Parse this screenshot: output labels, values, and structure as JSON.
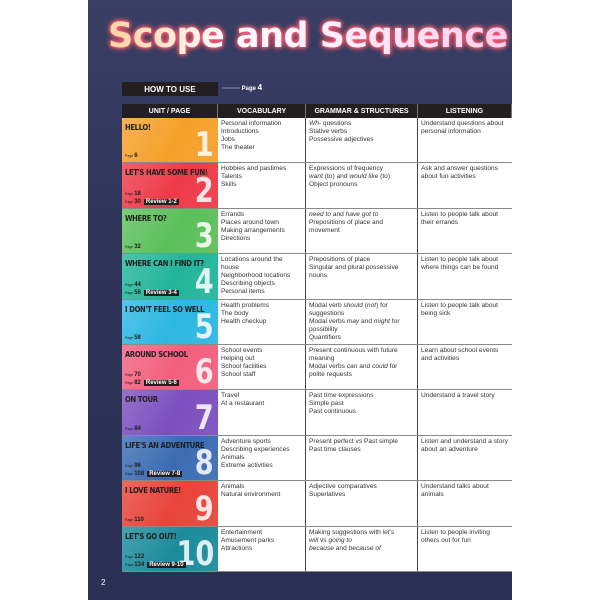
{
  "title": "Scope and Sequence",
  "how_to_use": {
    "label": "HOW TO USE",
    "dots": "·········",
    "page_label": "Page",
    "page": "4"
  },
  "headers": [
    "UNIT / PAGE",
    "VOCABULARY",
    "GRAMMAR & STRUCTURES",
    "LISTENING"
  ],
  "page_label": "Page",
  "units": [
    {
      "name": "HELLO!",
      "number": "1",
      "color": "#f6a02a",
      "pages": [
        "6"
      ],
      "review": "",
      "vocabulary": [
        "Personal information",
        "Introductions",
        "Jobs",
        "The theater"
      ],
      "grammar": [
        [
          [
            "Wh-",
            true
          ],
          [
            " questions",
            false
          ]
        ],
        [
          [
            "Stative verbs",
            false
          ]
        ],
        [
          [
            "Possessive adjectives",
            false
          ]
        ]
      ],
      "listening": "Understand questions about personal information"
    },
    {
      "name": "LET'S HAVE SOME FUN!",
      "number": "2",
      "color": "#ee3a48",
      "pages": [
        "18",
        "30"
      ],
      "review": "Review 1-2",
      "vocabulary": [
        "Hobbies and pastimes",
        "Talents",
        "Skills"
      ],
      "grammar": [
        [
          [
            "Expressions of frequency",
            false
          ]
        ],
        [
          [
            "want",
            true
          ],
          [
            " (to) and ",
            false
          ],
          [
            "would like",
            true
          ],
          [
            " (to)",
            false
          ]
        ],
        [
          [
            "Object pronouns",
            false
          ]
        ]
      ],
      "listening": "Ask and answer questions about fun activities"
    },
    {
      "name": "WHERE TO?",
      "number": "3",
      "color": "#5cbf5a",
      "pages": [
        "32"
      ],
      "review": "",
      "vocabulary": [
        "Errands",
        "Places around town",
        "Making arrangements",
        "Directions"
      ],
      "grammar": [
        [
          [
            "need to",
            true
          ],
          [
            " and ",
            false
          ],
          [
            "have got to",
            true
          ]
        ],
        [
          [
            "Prepositions of place and movement",
            false
          ]
        ]
      ],
      "listening": "Listen to people talk about their errands"
    },
    {
      "name": "WHERE CAN I FIND IT?",
      "number": "4",
      "color": "#22b59a",
      "pages": [
        "44",
        "56"
      ],
      "review": "Review 3-4",
      "vocabulary": [
        "Locations around the house",
        "Neighborhood locations",
        "Describing objects",
        "Personal items"
      ],
      "grammar": [
        [
          [
            "Prepositions of place",
            false
          ]
        ],
        [
          [
            "Singular and plural possessive nouns",
            false
          ]
        ]
      ],
      "listening": "Listen to people talk about where things can be found"
    },
    {
      "name": "I DON'T FEEL SO WELL",
      "number": "5",
      "color": "#2cb7e2",
      "pages": [
        "58"
      ],
      "review": "",
      "vocabulary": [
        "Health problems",
        "The body",
        "Health checkup"
      ],
      "grammar": [
        [
          [
            "Modal verb ",
            false
          ],
          [
            "should",
            true
          ],
          [
            " (",
            false
          ],
          [
            "not",
            true
          ],
          [
            ") for suggestions",
            false
          ]
        ],
        [
          [
            "Modal verbs ",
            false
          ],
          [
            "may",
            true
          ],
          [
            " and ",
            false
          ],
          [
            "might",
            true
          ],
          [
            " for possibility",
            false
          ]
        ],
        [
          [
            "Quantifiers",
            false
          ]
        ]
      ],
      "listening": "Listen to people talk about being sick"
    },
    {
      "name": "AROUND SCHOOL",
      "number": "6",
      "color": "#f2607e",
      "pages": [
        "70",
        "82"
      ],
      "review": "Review 5-6",
      "vocabulary": [
        "School events",
        "Helping out",
        "School facilities",
        "School staff"
      ],
      "grammar": [
        [
          [
            "Present continuous with future meaning",
            false
          ]
        ],
        [
          [
            "Modal verbs ",
            false
          ],
          [
            "can",
            true
          ],
          [
            " and ",
            false
          ],
          [
            "could",
            true
          ],
          [
            " for polite requests",
            false
          ]
        ]
      ],
      "listening": "Learn about school events and activities"
    },
    {
      "name": "ON TOUR",
      "number": "7",
      "color": "#7b4fbf",
      "pages": [
        "84"
      ],
      "review": "",
      "vocabulary": [
        "Travel",
        "At a restaurant"
      ],
      "grammar": [
        [
          [
            "Past time expressions",
            false
          ]
        ],
        [
          [
            "Simple past",
            false
          ]
        ],
        [
          [
            "Past continuous",
            false
          ]
        ]
      ],
      "listening": "Understand a travel story"
    },
    {
      "name": "LIFE'S AN ADVENTURE",
      "number": "8",
      "color": "#3b6cb2",
      "pages": [
        "96",
        "108"
      ],
      "review": "Review 7-8",
      "vocabulary": [
        "Adventure sports",
        "Describing experiences",
        "Animals",
        "Extreme activities"
      ],
      "grammar": [
        [
          [
            "Present perfect vs Past simple",
            false
          ]
        ],
        [
          [
            "Past time clauses",
            false
          ]
        ]
      ],
      "listening": "Listen and understand a story about an adventure"
    },
    {
      "name": "I LOVE NATURE!",
      "number": "9",
      "color": "#e8443a",
      "pages": [
        "110"
      ],
      "review": "",
      "vocabulary": [
        "Animals",
        "Natural environment"
      ],
      "grammar": [
        [
          [
            "Adjective comparatives",
            false
          ]
        ],
        [
          [
            "Superlatives",
            false
          ]
        ]
      ],
      "listening": "Understand talks about animals"
    },
    {
      "name": "LET'S GO OUT!",
      "number": "10",
      "color": "#1b8b9b",
      "pages": [
        "122",
        "134"
      ],
      "review": "Review 9-10",
      "vocabulary": [
        "Entertainment",
        "Amusement parks",
        "Attractions"
      ],
      "grammar": [
        [
          [
            "Making suggestions with ",
            false
          ],
          [
            "let's",
            true
          ]
        ],
        [
          [
            "will",
            true
          ],
          [
            " vs ",
            false
          ],
          [
            "going to",
            true
          ]
        ],
        [
          [
            "because",
            true
          ],
          [
            " and ",
            false
          ],
          [
            "because of",
            true
          ]
        ]
      ],
      "listening": "Listen to people inviting others out for fun"
    }
  ],
  "page_number": "2"
}
